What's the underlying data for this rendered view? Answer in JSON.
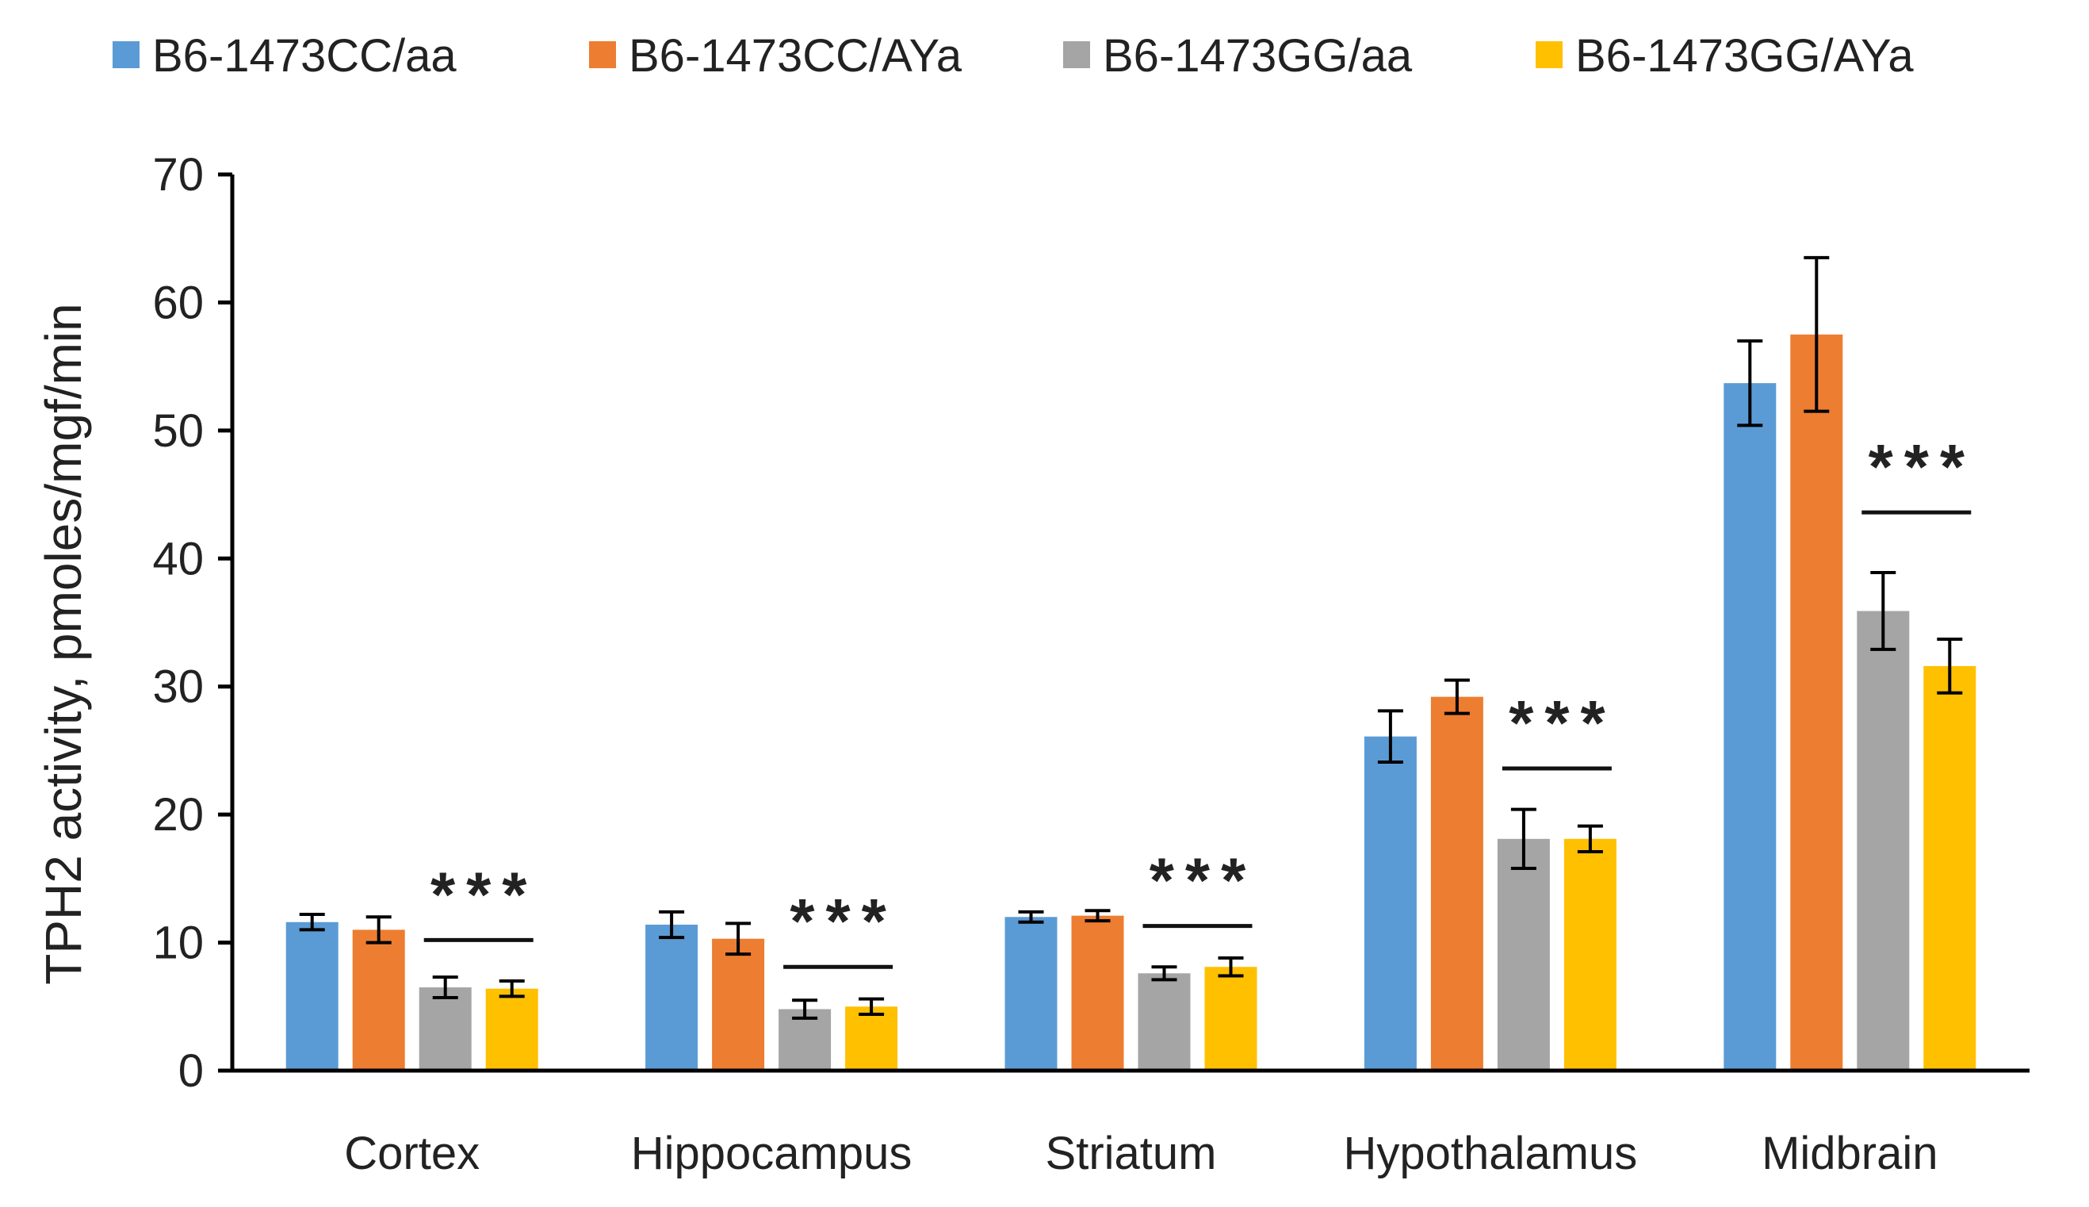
{
  "chart_data": {
    "type": "bar",
    "title": "",
    "xlabel": "",
    "ylabel": "TPH2 activity, pmoles/mgf/min",
    "ylim": [
      0,
      70
    ],
    "yticks": [
      0,
      10,
      20,
      30,
      40,
      50,
      60,
      70
    ],
    "grid": false,
    "legend_position": "top",
    "categories": [
      "Cortex",
      "Hippocampus",
      "Striatum",
      "Hypothalamus",
      "Midbrain"
    ],
    "series": [
      {
        "name": "B6-1473CC/aa",
        "color": "#5B9BD5",
        "values": [
          11.6,
          11.4,
          12.0,
          26.1,
          53.7
        ],
        "errors": [
          0.6,
          1.0,
          0.4,
          2.0,
          3.3
        ]
      },
      {
        "name": "B6-1473CC/AYa",
        "color": "#ED7D31",
        "values": [
          11.0,
          10.3,
          12.1,
          29.2,
          57.5
        ],
        "errors": [
          1.0,
          1.2,
          0.4,
          1.3,
          6.0
        ]
      },
      {
        "name": "B6-1473GG/aa",
        "color": "#A5A5A5",
        "values": [
          6.5,
          4.8,
          7.6,
          18.1,
          35.9
        ],
        "errors": [
          0.8,
          0.7,
          0.5,
          2.3,
          3.0
        ]
      },
      {
        "name": "B6-1473GG/AYa",
        "color": "#FFC000",
        "values": [
          6.4,
          5.0,
          8.1,
          18.1,
          31.6
        ],
        "errors": [
          0.6,
          0.6,
          0.7,
          1.0,
          2.1
        ]
      }
    ],
    "annotations": [
      {
        "category": "Cortex",
        "text": "***",
        "line_y": 10.2
      },
      {
        "category": "Hippocampus",
        "text": "***",
        "line_y": 8.1
      },
      {
        "category": "Striatum",
        "text": "***",
        "line_y": 11.3
      },
      {
        "category": "Hypothalamus",
        "text": "***",
        "line_y": 23.6
      },
      {
        "category": "Midbrain",
        "text": "***",
        "line_y": 43.6
      }
    ]
  }
}
